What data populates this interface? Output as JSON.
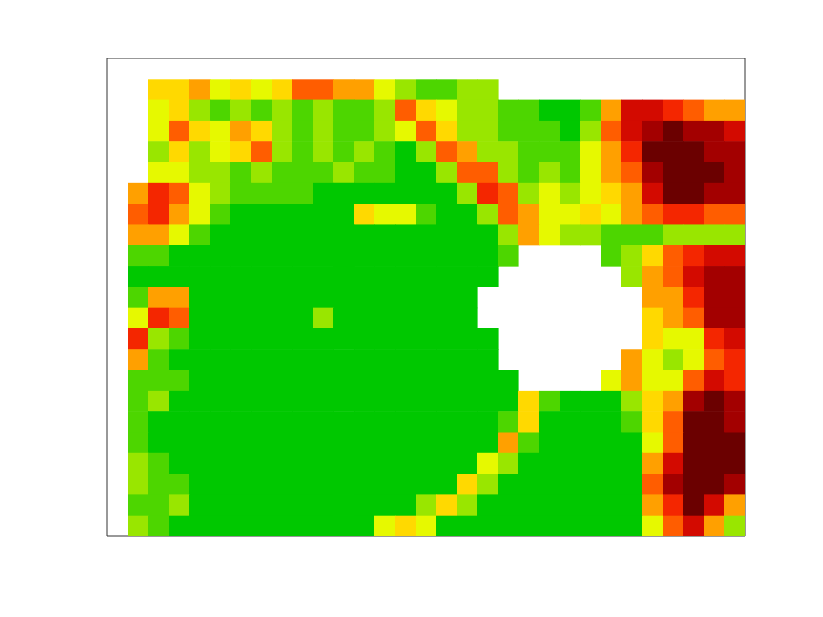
{
  "chart_data": {
    "type": "heatmap",
    "x": [
      0.5,
      1.5,
      2.5,
      3.5,
      4.5,
      5.5,
      6.5,
      7.5,
      8.5,
      9.5,
      10.5,
      11.5,
      12.5,
      13.5,
      14.5,
      15.5,
      16.5,
      17.5,
      18.5,
      19.5,
      20.5,
      21.5,
      22.5,
      23.5,
      24.5,
      25.5,
      26.5,
      27.5,
      28.5,
      29.5,
      30.5
    ],
    "y": [
      22.5,
      21.5,
      20.5,
      19.5,
      18.5,
      17.5,
      16.5,
      15.5,
      14.5,
      13.5,
      12.5,
      11.5,
      10.5,
      9.5,
      8.5,
      7.5,
      6.5,
      5.5,
      4.5,
      3.5,
      2.5,
      1.5,
      0.5
    ],
    "xlim": [
      0,
      31
    ],
    "ylim": [
      0,
      23
    ],
    "color_range": [
      0,
      1
    ],
    "tick_labels": false,
    "grid": false,
    "cells": [
      [
        null,
        null,
        null,
        null,
        null,
        null,
        null,
        null,
        null,
        null,
        null,
        null,
        null,
        null,
        null,
        null,
        null,
        null,
        null,
        null,
        null,
        null,
        null,
        null,
        null,
        null,
        null,
        null,
        null,
        null,
        null
      ],
      [
        null,
        null,
        0.4,
        0.4,
        0.5,
        0.3,
        0.4,
        0.3,
        0.4,
        0.6,
        0.6,
        0.5,
        0.5,
        0.3,
        0.2,
        0.1,
        0.1,
        0.2,
        0.2,
        null,
        null,
        null,
        null,
        null,
        null,
        null,
        null,
        null,
        null,
        null,
        null
      ],
      [
        null,
        null,
        0.3,
        0.4,
        0.2,
        0.1,
        0.2,
        0.1,
        0.2,
        0.1,
        0.2,
        0.1,
        0.1,
        0.2,
        0.6,
        0.4,
        0.3,
        0.2,
        0.2,
        0.1,
        0.1,
        0,
        0,
        0.1,
        0.5,
        0.8,
        0.8,
        0.7,
        0.6,
        0.5,
        0.5
      ],
      [
        null,
        null,
        0.3,
        0.6,
        0.4,
        0.3,
        0.5,
        0.4,
        0.2,
        0.1,
        0.2,
        0.1,
        0.1,
        0.2,
        0.3,
        0.6,
        0.4,
        0.2,
        0.2,
        0.1,
        0.1,
        0.1,
        0,
        0.2,
        0.6,
        0.8,
        0.9,
        1,
        0.9,
        0.9,
        0.8
      ],
      [
        null,
        null,
        0.2,
        0.4,
        0.2,
        0.3,
        0.4,
        0.6,
        0.2,
        0.1,
        0.2,
        0.1,
        0.2,
        0.1,
        0,
        0.2,
        0.6,
        0.5,
        0.2,
        0.2,
        0.1,
        0.1,
        0.1,
        0.3,
        0.5,
        0.7,
        1,
        1,
        1,
        0.9,
        0.9
      ],
      [
        null,
        null,
        0.3,
        0.3,
        0.2,
        0.2,
        0.1,
        0.2,
        0.1,
        0.1,
        0.1,
        0.2,
        0.1,
        0.1,
        0,
        0,
        0.2,
        0.6,
        0.6,
        0.2,
        0.1,
        0.2,
        0.1,
        0.3,
        0.5,
        0.6,
        0.9,
        1,
        1,
        1,
        0.9
      ],
      [
        null,
        0.5,
        0.7,
        0.6,
        0.3,
        0.2,
        0.1,
        0.1,
        0.1,
        0.1,
        0,
        0,
        0,
        0,
        0,
        0,
        0,
        0.2,
        0.7,
        0.6,
        0.2,
        0.3,
        0.2,
        0.3,
        0.4,
        0.5,
        0.8,
        1,
        1,
        0.9,
        0.9
      ],
      [
        null,
        0.6,
        0.7,
        0.5,
        0.3,
        0.1,
        0,
        0,
        0,
        0,
        0,
        0,
        0.4,
        0.3,
        0.3,
        0.1,
        0,
        0,
        0.2,
        0.6,
        0.5,
        0.3,
        0.3,
        0.4,
        0.3,
        0.5,
        0.6,
        0.7,
        0.7,
        0.6,
        0.6
      ],
      [
        null,
        0.5,
        0.5,
        0.3,
        0.1,
        0,
        0,
        0,
        0,
        0,
        0,
        0,
        0,
        0,
        0,
        0,
        0,
        0,
        0,
        0.2,
        0.5,
        0.3,
        0.2,
        0.2,
        0.1,
        0.1,
        0.1,
        0.2,
        0.2,
        0.2,
        0.2
      ],
      [
        null,
        0.1,
        0.1,
        0,
        0,
        0,
        0,
        0,
        0,
        0,
        0,
        0,
        0,
        0,
        0,
        0,
        0,
        0,
        0,
        0.1,
        null,
        null,
        null,
        null,
        0.1,
        0.2,
        0.4,
        0.6,
        0.7,
        0.8,
        0.8
      ],
      [
        null,
        0,
        0,
        0,
        0,
        0,
        0,
        0,
        0,
        0,
        0,
        0,
        0,
        0,
        0,
        0,
        0,
        0,
        0,
        null,
        null,
        null,
        null,
        null,
        null,
        0.2,
        0.5,
        0.6,
        0.8,
        0.9,
        0.9
      ],
      [
        null,
        0.1,
        0.5,
        0.5,
        0,
        0,
        0,
        0,
        0,
        0,
        0,
        0,
        0,
        0,
        0,
        0,
        0,
        0,
        null,
        null,
        null,
        null,
        null,
        null,
        null,
        null,
        0.5,
        0.5,
        0.7,
        0.9,
        0.9
      ],
      [
        null,
        0.3,
        0.7,
        0.6,
        0,
        0,
        0,
        0,
        0,
        0,
        0.2,
        0,
        0,
        0,
        0,
        0,
        0,
        0,
        null,
        null,
        null,
        null,
        null,
        null,
        null,
        null,
        0.4,
        0.5,
        0.6,
        0.9,
        0.9
      ],
      [
        null,
        0.7,
        0.2,
        0.1,
        0,
        0,
        0,
        0,
        0,
        0,
        0,
        0,
        0,
        0,
        0,
        0,
        0,
        0,
        0,
        null,
        null,
        null,
        null,
        null,
        null,
        null,
        0.4,
        0.3,
        0.3,
        0.7,
        0.8
      ],
      [
        null,
        0.5,
        0.1,
        0,
        0,
        0,
        0,
        0,
        0,
        0,
        0,
        0,
        0,
        0,
        0,
        0,
        0,
        0,
        0,
        null,
        null,
        null,
        null,
        null,
        null,
        0.5,
        0.3,
        0.2,
        0.3,
        0.6,
        0.7
      ],
      [
        null,
        0.1,
        0.1,
        0.1,
        0,
        0,
        0,
        0,
        0,
        0,
        0,
        0,
        0,
        0,
        0,
        0,
        0,
        0,
        0,
        0,
        null,
        null,
        null,
        null,
        0.3,
        0.5,
        0.3,
        0.3,
        0.6,
        0.8,
        0.7
      ],
      [
        null,
        0.1,
        0.2,
        0,
        0,
        0,
        0,
        0,
        0,
        0,
        0,
        0,
        0,
        0,
        0,
        0,
        0,
        0,
        0,
        0,
        0.4,
        0.1,
        0,
        0,
        0,
        0.2,
        0.4,
        0.5,
        0.9,
        1,
        0.9
      ],
      [
        null,
        0.1,
        0,
        0,
        0,
        0,
        0,
        0,
        0,
        0,
        0,
        0,
        0,
        0,
        0,
        0,
        0,
        0,
        0,
        0.1,
        0.4,
        0,
        0,
        0,
        0,
        0.1,
        0.4,
        0.6,
        1,
        1,
        0.9
      ],
      [
        null,
        0.1,
        0,
        0,
        0,
        0,
        0,
        0,
        0,
        0,
        0,
        0,
        0,
        0,
        0,
        0,
        0,
        0,
        0,
        0.5,
        0.1,
        0,
        0,
        0,
        0,
        0,
        0.3,
        0.6,
        1,
        1,
        1
      ],
      [
        null,
        0.2,
        0.1,
        0,
        0,
        0,
        0,
        0,
        0,
        0,
        0,
        0,
        0,
        0,
        0,
        0,
        0,
        0,
        0.3,
        0.2,
        0,
        0,
        0,
        0,
        0,
        0,
        0.5,
        0.8,
        1,
        1,
        1
      ],
      [
        null,
        0.2,
        0.1,
        0.1,
        0,
        0,
        0,
        0,
        0,
        0,
        0,
        0,
        0,
        0,
        0,
        0,
        0,
        0.4,
        0.2,
        0,
        0,
        0,
        0,
        0,
        0,
        0,
        0.6,
        0.9,
        1,
        1,
        0.9
      ],
      [
        null,
        0.1,
        0.1,
        0.2,
        0,
        0,
        0,
        0,
        0,
        0,
        0,
        0,
        0,
        0,
        0,
        0.2,
        0.4,
        0.2,
        0,
        0,
        0,
        0,
        0,
        0,
        0,
        0,
        0.5,
        0.7,
        1,
        0.8,
        0.5
      ],
      [
        null,
        0.2,
        0.1,
        0,
        0,
        0,
        0,
        0,
        0,
        0,
        0,
        0,
        0,
        0.3,
        0.4,
        0.3,
        0,
        0,
        0,
        0,
        0,
        0,
        0,
        0,
        0,
        0,
        0.3,
        0.6,
        0.8,
        0.5,
        0.2
      ]
    ]
  }
}
